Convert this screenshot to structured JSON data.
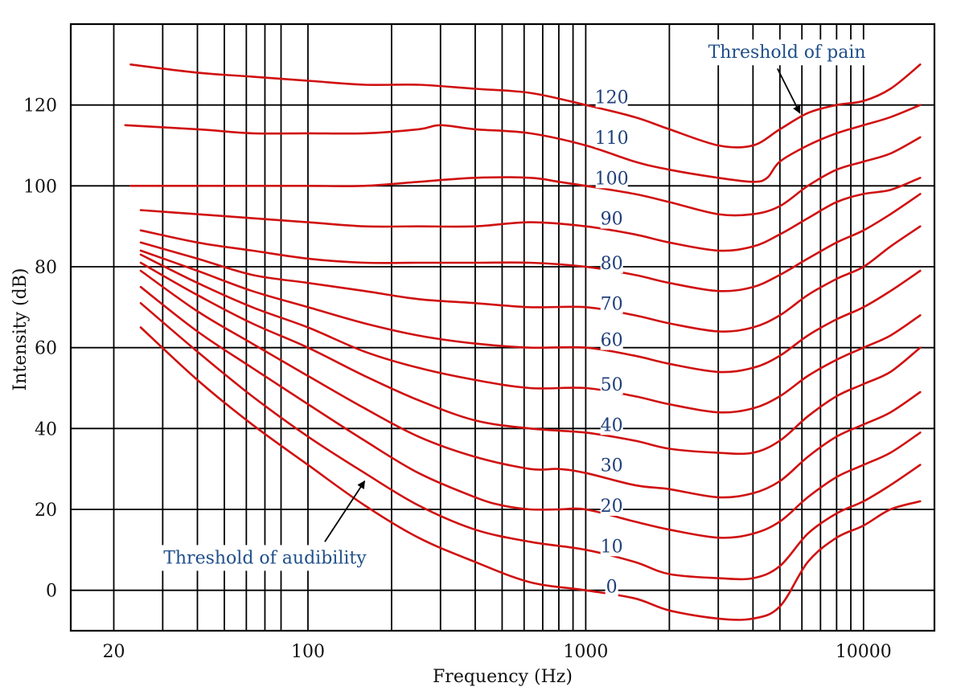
{
  "chart_data": {
    "type": "line",
    "title": "",
    "xlabel": "Frequency (Hz)",
    "ylabel": "Intensity (dB)",
    "xscale": "log",
    "xlim": [
      14,
      18000
    ],
    "ylim": [
      -10,
      140
    ],
    "x_ticks": [
      {
        "value": 20,
        "label": "20"
      },
      {
        "value": 100,
        "label": "100"
      },
      {
        "value": 1000,
        "label": "1000"
      },
      {
        "value": 10000,
        "label": "10000"
      }
    ],
    "y_ticks": [
      {
        "value": 0,
        "label": "0"
      },
      {
        "value": 20,
        "label": "20"
      },
      {
        "value": 40,
        "label": "40"
      },
      {
        "value": 60,
        "label": "60"
      },
      {
        "value": 80,
        "label": "80"
      },
      {
        "value": 100,
        "label": "100"
      },
      {
        "value": 120,
        "label": "120"
      }
    ],
    "x_gridlines": [
      20,
      30,
      40,
      50,
      60,
      70,
      80,
      100,
      200,
      300,
      400,
      500,
      600,
      700,
      800,
      900,
      1000,
      2000,
      3000,
      4000,
      5000,
      6000,
      7000,
      8000,
      9000,
      10000
    ],
    "y_gridlines": [
      0,
      20,
      40,
      60,
      80,
      100,
      120
    ],
    "line_color": "#d01010",
    "series": [
      {
        "name": "0",
        "label": "0",
        "label_at": [
          1100,
          1
        ],
        "x": [
          25,
          40,
          63,
          100,
          160,
          250,
          400,
          630,
          1000,
          1500,
          2000,
          3000,
          4000,
          5000,
          6300,
          8000,
          10000,
          12500,
          16000
        ],
        "y": [
          65,
          52,
          41,
          31,
          21,
          13,
          7,
          2,
          0,
          -2,
          -5,
          -7,
          -7,
          -4,
          7,
          13,
          16,
          20,
          22
        ]
      },
      {
        "name": "10",
        "label": "10",
        "label_at": [
          1100,
          11
        ],
        "x": [
          25,
          40,
          63,
          100,
          160,
          250,
          400,
          630,
          1000,
          1500,
          2000,
          3000,
          4000,
          5000,
          6300,
          8000,
          10000,
          12500,
          16000
        ],
        "y": [
          71,
          59,
          48,
          38,
          29,
          21,
          15,
          12,
          10,
          7,
          4,
          3,
          3,
          6,
          14,
          19,
          22,
          26,
          31
        ]
      },
      {
        "name": "20",
        "label": "20",
        "label_at": [
          1100,
          21
        ],
        "x": [
          25,
          40,
          63,
          100,
          160,
          250,
          400,
          500,
          630,
          800,
          1000,
          1500,
          2000,
          3000,
          4000,
          5000,
          6300,
          8000,
          10000,
          12500,
          16000
        ],
        "y": [
          75,
          64,
          55,
          46,
          37,
          29,
          23,
          21,
          20,
          20,
          20,
          17,
          15,
          13,
          14,
          17,
          23,
          28,
          31,
          34,
          39
        ]
      },
      {
        "name": "30",
        "label": "30",
        "label_at": [
          1100,
          31
        ],
        "x": [
          25,
          40,
          63,
          100,
          160,
          250,
          400,
          630,
          800,
          1000,
          1500,
          2000,
          3000,
          4000,
          5000,
          6300,
          8000,
          10000,
          12500,
          16000
        ],
        "y": [
          79,
          69,
          61,
          53,
          45,
          38,
          33,
          30,
          30,
          29,
          26,
          25,
          23,
          24,
          27,
          33,
          38,
          41,
          44,
          49
        ]
      },
      {
        "name": "40",
        "label": "40",
        "label_at": [
          1100,
          41
        ],
        "x": [
          25,
          40,
          63,
          100,
          160,
          250,
          400,
          630,
          1000,
          1500,
          2000,
          3000,
          4000,
          5000,
          6300,
          8000,
          10000,
          12500,
          16000
        ],
        "y": [
          81,
          73,
          66,
          60,
          53,
          47,
          42,
          40,
          39,
          37,
          35,
          34,
          34,
          37,
          43,
          48,
          51,
          54,
          60
        ]
      },
      {
        "name": "50",
        "label": "50",
        "label_at": [
          1100,
          51
        ],
        "x": [
          25,
          40,
          63,
          100,
          160,
          250,
          400,
          630,
          1000,
          1500,
          2000,
          3000,
          4000,
          5000,
          6300,
          8000,
          10000,
          12500,
          16000
        ],
        "y": [
          83,
          76,
          70,
          65,
          59,
          55,
          52,
          50,
          50,
          48,
          46,
          44,
          45,
          48,
          53,
          57,
          60,
          63,
          68
        ]
      },
      {
        "name": "60",
        "label": "60",
        "label_at": [
          1100,
          62
        ],
        "x": [
          25,
          40,
          63,
          100,
          160,
          250,
          400,
          630,
          1000,
          1500,
          2000,
          3000,
          4000,
          5000,
          6300,
          8000,
          10000,
          12500,
          16000
        ],
        "y": [
          84,
          79,
          74,
          70,
          66,
          63,
          61,
          60,
          60,
          58,
          56,
          54,
          55,
          58,
          63,
          67,
          70,
          74,
          79
        ]
      },
      {
        "name": "70",
        "label": "70",
        "label_at": [
          1100,
          71
        ],
        "x": [
          25,
          40,
          63,
          100,
          160,
          250,
          400,
          630,
          1000,
          1500,
          2000,
          3000,
          4000,
          5000,
          6300,
          8000,
          10000,
          12500,
          16000
        ],
        "y": [
          86,
          82,
          78,
          76,
          74,
          72,
          71,
          70,
          70,
          68,
          66,
          64,
          65,
          68,
          73,
          77,
          80,
          85,
          90
        ]
      },
      {
        "name": "80",
        "label": "80",
        "label_at": [
          1100,
          81
        ],
        "x": [
          25,
          40,
          63,
          100,
          160,
          250,
          400,
          630,
          1000,
          1500,
          2000,
          3000,
          4000,
          5000,
          6300,
          8000,
          10000,
          12500,
          16000
        ],
        "y": [
          89,
          86,
          84,
          82,
          81,
          81,
          81,
          81,
          80,
          78,
          76,
          74,
          75,
          78,
          82,
          86,
          89,
          93,
          98
        ]
      },
      {
        "name": "90",
        "label": "90",
        "label_at": [
          1100,
          92
        ],
        "x": [
          25,
          40,
          63,
          100,
          160,
          250,
          400,
          630,
          1000,
          1500,
          2000,
          3000,
          4000,
          5000,
          6300,
          8000,
          10000,
          12500,
          16000
        ],
        "y": [
          94,
          93,
          92,
          91,
          90,
          90,
          90,
          91,
          90,
          88,
          86,
          84,
          85,
          88,
          92,
          96,
          98,
          99,
          102
        ]
      },
      {
        "name": "100",
        "label": "100",
        "label_at": [
          1100,
          102
        ],
        "x": [
          23,
          40,
          63,
          100,
          160,
          250,
          400,
          630,
          800,
          1000,
          1500,
          2000,
          3000,
          4000,
          5000,
          6300,
          8000,
          10000,
          12500,
          16000
        ],
        "y": [
          100,
          100,
          100,
          100,
          100,
          101,
          102,
          102,
          101,
          100,
          98,
          96,
          93,
          93,
          95,
          100,
          104,
          106,
          108,
          112
        ]
      },
      {
        "name": "110",
        "label": "110",
        "label_at": [
          1100,
          112
        ],
        "x": [
          22,
          40,
          63,
          100,
          160,
          250,
          300,
          400,
          630,
          1000,
          1500,
          2000,
          3000,
          4000,
          4500,
          5000,
          6300,
          8000,
          10000,
          12500,
          16000
        ],
        "y": [
          115,
          114,
          113,
          113,
          113,
          114,
          115,
          114,
          113,
          110,
          106,
          104,
          102,
          101,
          102,
          106,
          110,
          113,
          115,
          117,
          120
        ]
      },
      {
        "name": "120",
        "label": "120",
        "label_at": [
          1100,
          122
        ],
        "x": [
          23,
          40,
          63,
          100,
          160,
          250,
          400,
          630,
          1000,
          1500,
          2000,
          3000,
          4000,
          5000,
          6300,
          8000,
          10000,
          12500,
          16000
        ],
        "y": [
          130,
          128,
          127,
          126,
          125,
          125,
          124,
          123,
          120,
          117,
          114,
          110,
          110,
          114,
          118,
          120,
          121,
          124,
          130
        ]
      }
    ],
    "annotations": [
      {
        "name": "threshold-of-pain",
        "text": "Threshold of pain",
        "text_at": [
          5300,
          133
        ],
        "arrow_from": [
          4900,
          129
        ],
        "arrow_to": [
          5900,
          118
        ]
      },
      {
        "name": "threshold-of-audibility",
        "text": "Threshold of audibility",
        "text_at": [
          70,
          8
        ],
        "arrow_from": [
          115,
          12
        ],
        "arrow_to": [
          160,
          27
        ]
      }
    ]
  }
}
